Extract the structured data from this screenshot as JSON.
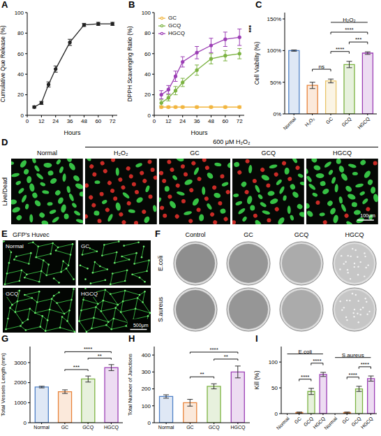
{
  "chart_data": [
    {
      "panel": "A",
      "type": "line",
      "x_label": "Hours",
      "y_label": "Cumulative Que Release (%)",
      "x": [
        6,
        12,
        18,
        24,
        36,
        48,
        60,
        72
      ],
      "values": [
        8,
        12,
        30,
        45,
        71,
        88,
        89,
        89
      ],
      "errors": [
        1,
        1.5,
        2.5,
        3,
        3,
        1.5,
        1.5,
        1.5
      ],
      "color": "#222222",
      "marker": "circle",
      "xlim": [
        0,
        76
      ],
      "xticks": [
        0,
        12,
        24,
        36,
        48,
        60,
        72
      ],
      "ylim": [
        0,
        100
      ],
      "yticks": [
        0,
        20,
        40,
        60,
        80,
        100
      ],
      "grid": false
    },
    {
      "panel": "B",
      "type": "line",
      "x_label": "Hours",
      "y_label": "DPPH Scavenging Ratio (%)",
      "x": [
        6,
        12,
        18,
        24,
        36,
        48,
        60,
        72
      ],
      "series": [
        {
          "name": "GC",
          "color": "#f2b640",
          "values": [
            8,
            8,
            8,
            8,
            8,
            8,
            8,
            8
          ],
          "errors": [
            1,
            1,
            1,
            1,
            1,
            1,
            1,
            1
          ]
        },
        {
          "name": "GCQ",
          "color": "#7cb342",
          "values": [
            12,
            17,
            24,
            32,
            44,
            55,
            58,
            60
          ],
          "errors": [
            3,
            3,
            4,
            4,
            5,
            5,
            5,
            5
          ]
        },
        {
          "name": "HGCQ",
          "color": "#9c3fb5",
          "values": [
            20,
            25,
            38,
            52,
            61,
            68,
            74,
            76
          ],
          "errors": [
            4,
            4,
            5,
            5,
            6,
            7,
            7,
            8
          ]
        }
      ],
      "marker": "circle",
      "xlim": [
        0,
        76
      ],
      "xticks": [
        0,
        12,
        24,
        36,
        48,
        60,
        72
      ],
      "ylim": [
        0,
        100
      ],
      "yticks": [
        0,
        20,
        40,
        60,
        80,
        100
      ],
      "legend": "top-left",
      "annotations": [
        "***"
      ],
      "grid": false
    },
    {
      "panel": "C",
      "type": "bar",
      "y_label": "Cell Viability (%)",
      "categories": [
        "Normal",
        "H₂O₂",
        "GC",
        "GCQ",
        "HGCQ"
      ],
      "values": [
        100,
        45,
        52,
        78,
        96
      ],
      "errors": [
        1,
        5,
        3,
        5,
        2
      ],
      "colors": [
        "#4f81c7",
        "#e8833a",
        "#e9c46a",
        "#7cb342",
        "#9c3fb5"
      ],
      "ylim": [
        0,
        160
      ],
      "yticks": [
        {
          "value": 0,
          "label": "0%"
        },
        {
          "value": 50,
          "label": "50%"
        },
        {
          "value": 100,
          "label": "100%"
        },
        {
          "value": 150,
          "label": "150%"
        }
      ],
      "groups": [
        {
          "label": "H₂O₂",
          "from": 2,
          "to": 4
        }
      ],
      "significance": [
        {
          "from": 1,
          "to": 2,
          "label": "ns"
        },
        {
          "from": 2,
          "to": 3,
          "label": "****"
        },
        {
          "from": 3,
          "to": 4,
          "label": "***"
        },
        {
          "from": 2,
          "to": 4,
          "label": "****"
        }
      ],
      "grid": false
    },
    {
      "panel": "G",
      "type": "bar",
      "y_label": "Total Vessels Length (mm)",
      "categories": [
        "Normal",
        "GC",
        "GCQ",
        "HGCQ"
      ],
      "values": [
        1780,
        1550,
        2180,
        2750
      ],
      "errors": [
        40,
        90,
        150,
        150
      ],
      "colors": [
        "#4f81c7",
        "#e8833a",
        "#7cb342",
        "#9c3fb5"
      ],
      "ylim": [
        0,
        3800
      ],
      "yticks": [
        0,
        1000,
        2000,
        3000
      ],
      "significance": [
        {
          "from": 1,
          "to": 2,
          "label": "***"
        },
        {
          "from": 2,
          "to": 3,
          "label": "**"
        },
        {
          "from": 1,
          "to": 3,
          "label": "****"
        }
      ],
      "grid": false
    },
    {
      "panel": "H",
      "type": "bar",
      "y_label": "Total Number of Junctions",
      "categories": [
        "Normal",
        "GC",
        "GCQ",
        "HGCQ"
      ],
      "values": [
        155,
        118,
        215,
        300
      ],
      "errors": [
        10,
        20,
        15,
        35
      ],
      "colors": [
        "#4f81c7",
        "#e8833a",
        "#7cb342",
        "#9c3fb5"
      ],
      "ylim": [
        0,
        450
      ],
      "yticks": [
        0,
        100,
        200,
        300,
        400
      ],
      "significance": [
        {
          "from": 1,
          "to": 2,
          "label": "**"
        },
        {
          "from": 2,
          "to": 3,
          "label": "**"
        },
        {
          "from": 1,
          "to": 3,
          "label": "****"
        }
      ],
      "grid": false
    },
    {
      "panel": "I",
      "type": "bar",
      "y_label": "Kill (%)",
      "categories": [
        "Normal",
        "GC",
        "GCQ",
        "HGCQ",
        "Normal",
        "GC",
        "GCQ",
        "HGCQ"
      ],
      "values": [
        0,
        2,
        43,
        76,
        0,
        2,
        48,
        68
      ],
      "errors": [
        0,
        1,
        6,
        4,
        0,
        1,
        5,
        5
      ],
      "colors": [
        "#4f81c7",
        "#e8833a",
        "#7cb342",
        "#9c3fb5",
        "#4f81c7",
        "#e8833a",
        "#7cb342",
        "#9c3fb5"
      ],
      "ylim": [
        0,
        130
      ],
      "yticks": [
        0,
        50,
        100
      ],
      "groups": [
        {
          "label": "E.coli",
          "from": 0,
          "to": 3
        },
        {
          "label": "S.aureus",
          "from": 4,
          "to": 7
        }
      ],
      "significance": [
        {
          "from": 1,
          "to": 2,
          "label": "****"
        },
        {
          "from": 2,
          "to": 3,
          "label": "****"
        },
        {
          "from": 5,
          "to": 6,
          "label": "****"
        },
        {
          "from": 6,
          "to": 7,
          "label": "****"
        }
      ],
      "grid": false
    }
  ],
  "image_panels": [
    {
      "panel": "D",
      "header": "600 μM H₂O₂",
      "row_label": "Live/Dead",
      "columns": [
        "Normal",
        "H₂O₂",
        "GC",
        "GCQ",
        "HGCQ"
      ],
      "scale_bar": "100μm"
    },
    {
      "panel": "E",
      "title": "GFP's Huvec",
      "images": [
        "Normal",
        "GC",
        "GCQ",
        "HGCQ"
      ],
      "scale_bar": "500μm"
    },
    {
      "panel": "F",
      "columns": [
        "Control",
        "GC",
        "GCQ",
        "HGCQ"
      ],
      "rows": [
        "E.coli",
        "S.aureus"
      ]
    }
  ]
}
